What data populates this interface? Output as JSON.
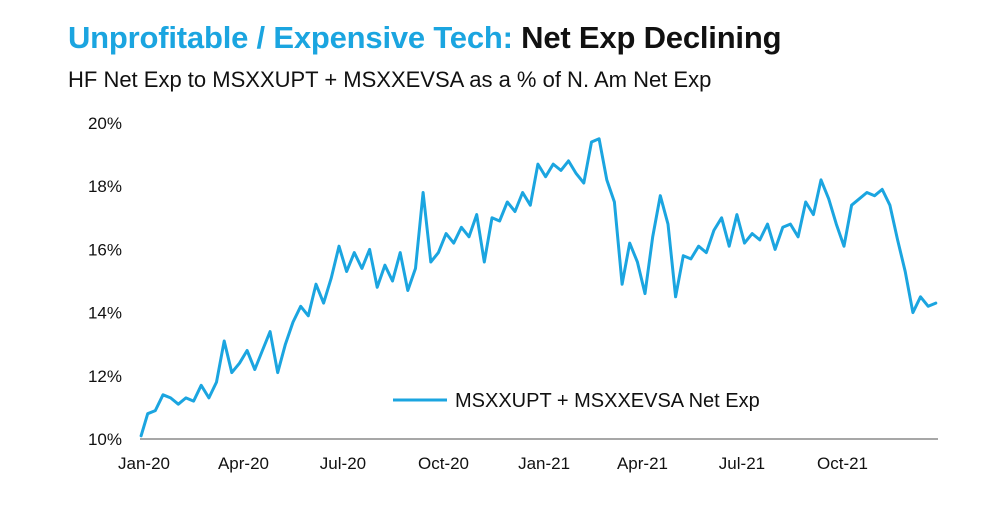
{
  "header": {
    "title_part1": "Unprofitable / Expensive Tech:",
    "title_part2": "Net Exp Declining",
    "subtitle": "HF Net Exp to MSXXUPT + MSXXEVSA as a % of N. Am Net Exp"
  },
  "colors": {
    "title_accent": "#1ba5e0",
    "series_line": "#1ba5e0",
    "axis": "#8a8a8a"
  },
  "chart_data": {
    "type": "line",
    "title": "Unprofitable / Expensive Tech: Net Exp Declining",
    "subtitle": "HF Net Exp to MSXXUPT + MSXXEVSA as a % of N. Am Net Exp",
    "xlabel": "",
    "ylabel": "",
    "ylim": [
      10,
      20
    ],
    "y_ticks": [
      10,
      12,
      14,
      16,
      18,
      20
    ],
    "y_tick_labels": [
      "10%",
      "12%",
      "14%",
      "16%",
      "18%",
      "20%"
    ],
    "x_tick_labels": [
      "Jan-20",
      "Apr-20",
      "Jul-20",
      "Oct-20",
      "Jan-21",
      "Apr-21",
      "Jul-21",
      "Oct-21"
    ],
    "x_range": [
      "2020-01-01",
      "2021-12-31"
    ],
    "grid": false,
    "legend_position": "bottom-center",
    "series": [
      {
        "name": "MSXXUPT + MSXXEVSA Net Exp",
        "x": [
          "2020-01-02",
          "2020-01-08",
          "2020-01-15",
          "2020-01-22",
          "2020-01-29",
          "2020-02-05",
          "2020-02-12",
          "2020-02-19",
          "2020-02-26",
          "2020-03-04",
          "2020-03-11",
          "2020-03-18",
          "2020-03-25",
          "2020-04-01",
          "2020-04-08",
          "2020-04-15",
          "2020-04-22",
          "2020-04-29",
          "2020-05-06",
          "2020-05-13",
          "2020-05-20",
          "2020-05-27",
          "2020-06-03",
          "2020-06-10",
          "2020-06-17",
          "2020-06-24",
          "2020-07-01",
          "2020-07-08",
          "2020-07-15",
          "2020-07-22",
          "2020-07-29",
          "2020-08-05",
          "2020-08-12",
          "2020-08-19",
          "2020-08-26",
          "2020-09-02",
          "2020-09-09",
          "2020-09-16",
          "2020-09-23",
          "2020-09-30",
          "2020-10-07",
          "2020-10-14",
          "2020-10-21",
          "2020-10-28",
          "2020-11-04",
          "2020-11-11",
          "2020-11-18",
          "2020-11-25",
          "2020-12-02",
          "2020-12-09",
          "2020-12-16",
          "2020-12-23",
          "2020-12-30",
          "2021-01-06",
          "2021-01-13",
          "2021-01-20",
          "2021-01-27",
          "2021-02-03",
          "2021-02-10",
          "2021-02-17",
          "2021-02-24",
          "2021-03-03",
          "2021-03-10",
          "2021-03-17",
          "2021-03-24",
          "2021-03-31",
          "2021-04-07",
          "2021-04-14",
          "2021-04-21",
          "2021-04-28",
          "2021-05-05",
          "2021-05-12",
          "2021-05-19",
          "2021-05-26",
          "2021-06-02",
          "2021-06-09",
          "2021-06-16",
          "2021-06-23",
          "2021-06-30",
          "2021-07-07",
          "2021-07-14",
          "2021-07-21",
          "2021-07-28",
          "2021-08-04",
          "2021-08-11",
          "2021-08-18",
          "2021-08-25",
          "2021-09-01",
          "2021-09-08",
          "2021-09-15",
          "2021-09-22",
          "2021-09-29",
          "2021-10-06",
          "2021-10-13",
          "2021-10-20",
          "2021-10-27",
          "2021-11-03",
          "2021-11-10",
          "2021-11-17",
          "2021-11-24",
          "2021-12-01",
          "2021-12-08",
          "2021-12-15",
          "2021-12-22",
          "2021-12-29"
        ],
        "values": [
          10.1,
          10.8,
          10.9,
          11.4,
          11.3,
          11.1,
          11.3,
          11.2,
          11.7,
          11.3,
          11.8,
          13.1,
          12.1,
          12.4,
          12.8,
          12.2,
          12.8,
          13.4,
          12.1,
          13.0,
          13.7,
          14.2,
          13.9,
          14.9,
          14.3,
          15.1,
          16.1,
          15.3,
          15.9,
          15.4,
          16.0,
          14.8,
          15.5,
          15.0,
          15.9,
          14.7,
          15.4,
          17.8,
          15.6,
          15.9,
          16.5,
          16.2,
          16.7,
          16.4,
          17.1,
          15.6,
          17.0,
          16.9,
          17.5,
          17.2,
          17.8,
          17.4,
          18.7,
          18.3,
          18.7,
          18.5,
          18.8,
          18.4,
          18.1,
          19.4,
          19.5,
          18.2,
          17.5,
          14.9,
          16.2,
          15.6,
          14.6,
          16.4,
          17.7,
          16.8,
          14.5,
          15.8,
          15.7,
          16.1,
          15.9,
          16.6,
          17.0,
          16.1,
          17.1,
          16.2,
          16.5,
          16.3,
          16.8,
          16.0,
          16.7,
          16.8,
          16.4,
          17.5,
          17.1,
          18.2,
          17.6,
          16.8,
          16.1,
          17.4,
          17.6,
          17.8,
          17.7,
          17.9,
          17.4,
          16.3,
          15.3,
          14.0,
          14.5,
          14.2,
          14.3
        ]
      }
    ]
  }
}
